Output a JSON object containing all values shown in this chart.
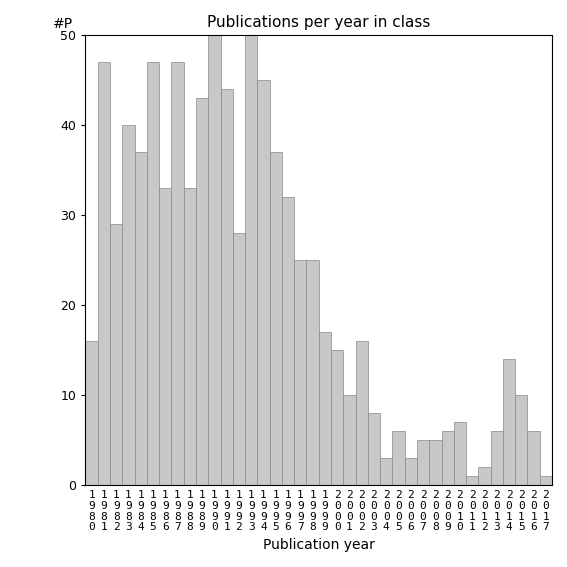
{
  "title": "Publications per year in class",
  "xlabel": "Publication year",
  "ylabel": "#P",
  "bar_color": "#c8c8c8",
  "bar_edgecolor": "#888888",
  "background_color": "#ffffff",
  "ylim": [
    0,
    50
  ],
  "yticks": [
    0,
    10,
    20,
    30,
    40,
    50
  ],
  "categories": [
    "1980",
    "1981",
    "1982",
    "1983",
    "1984",
    "1985",
    "1986",
    "1987",
    "1988",
    "1989",
    "1990",
    "1991",
    "1992",
    "1993",
    "1994",
    "1995",
    "1996",
    "1997",
    "1998",
    "1999",
    "2000",
    "2001",
    "2002",
    "2003",
    "2004",
    "2005",
    "2006",
    "2007",
    "2008",
    "2009",
    "2010",
    "2011",
    "2012",
    "2013",
    "2014",
    "2015",
    "2016",
    "2017"
  ],
  "values": [
    16,
    47,
    29,
    40,
    37,
    47,
    33,
    47,
    33,
    43,
    50,
    44,
    28,
    50,
    45,
    37,
    32,
    25,
    25,
    17,
    15,
    10,
    16,
    8,
    3,
    6,
    3,
    5,
    5,
    6,
    7,
    1,
    2,
    6,
    14,
    10,
    6,
    1
  ]
}
